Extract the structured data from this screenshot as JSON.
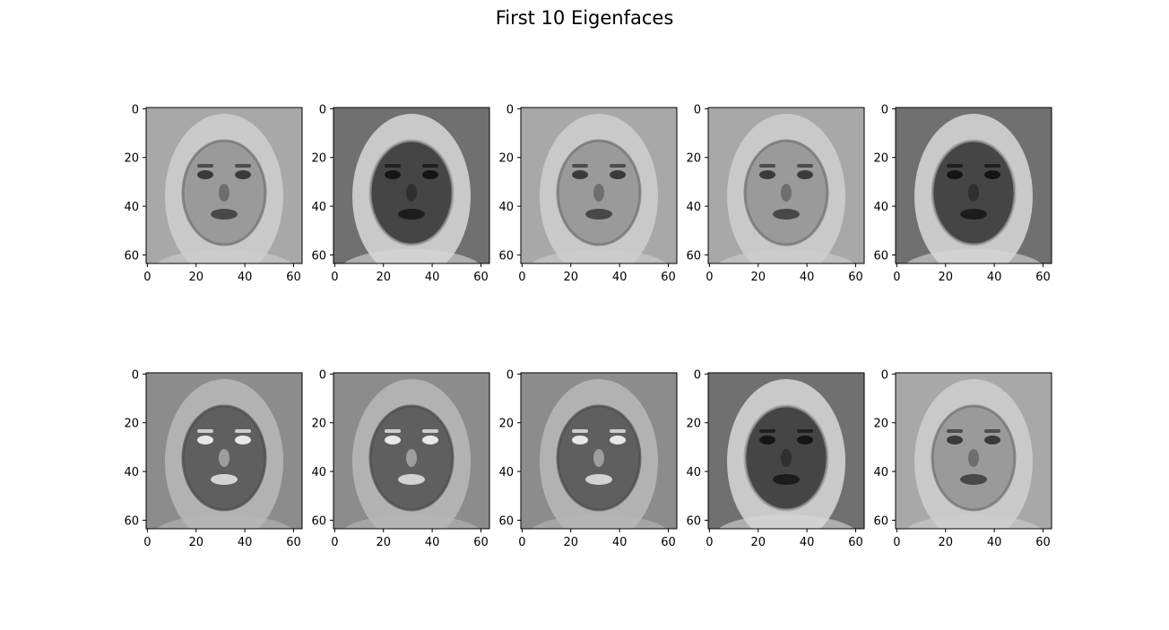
{
  "title": "First 10 Eigenfaces",
  "chart_data": {
    "type": "heatmap",
    "title": "First 10 Eigenfaces",
    "grid": false,
    "colormap": "gray",
    "layout": {
      "rows": 2,
      "cols": 5
    },
    "panels": [
      {
        "name": "",
        "tone": "light",
        "xticks": [
          0,
          20,
          40,
          60
        ],
        "yticks": [
          0,
          20,
          40,
          60
        ],
        "xlim": [
          0,
          63
        ],
        "ylim": [
          63,
          0
        ]
      },
      {
        "name": "",
        "tone": "dark",
        "xticks": [
          0,
          20,
          40,
          60
        ],
        "yticks": [
          0,
          20,
          40,
          60
        ],
        "xlim": [
          0,
          63
        ],
        "ylim": [
          63,
          0
        ]
      },
      {
        "name": "",
        "tone": "light",
        "xticks": [
          0,
          20,
          40,
          60
        ],
        "yticks": [
          0,
          20,
          40,
          60
        ],
        "xlim": [
          0,
          63
        ],
        "ylim": [
          63,
          0
        ]
      },
      {
        "name": "",
        "tone": "light",
        "xticks": [
          0,
          20,
          40,
          60
        ],
        "yticks": [
          0,
          20,
          40,
          60
        ],
        "xlim": [
          0,
          63
        ],
        "ylim": [
          63,
          0
        ]
      },
      {
        "name": "",
        "tone": "dark",
        "xticks": [
          0,
          20,
          40,
          60
        ],
        "yticks": [
          0,
          20,
          40,
          60
        ],
        "xlim": [
          0,
          63
        ],
        "ylim": [
          63,
          0
        ]
      },
      {
        "name": "",
        "tone": "mid",
        "xticks": [
          0,
          20,
          40,
          60
        ],
        "yticks": [
          0,
          20,
          40,
          60
        ],
        "xlim": [
          0,
          63
        ],
        "ylim": [
          63,
          0
        ]
      },
      {
        "name": "",
        "tone": "mid",
        "xticks": [
          0,
          20,
          40,
          60
        ],
        "yticks": [
          0,
          20,
          40,
          60
        ],
        "xlim": [
          0,
          63
        ],
        "ylim": [
          63,
          0
        ]
      },
      {
        "name": "",
        "tone": "mid",
        "xticks": [
          0,
          20,
          40,
          60
        ],
        "yticks": [
          0,
          20,
          40,
          60
        ],
        "xlim": [
          0,
          63
        ],
        "ylim": [
          63,
          0
        ]
      },
      {
        "name": "",
        "tone": "dark",
        "xticks": [
          0,
          20,
          40,
          60
        ],
        "yticks": [
          0,
          20,
          40,
          60
        ],
        "xlim": [
          0,
          63
        ],
        "ylim": [
          63,
          0
        ]
      },
      {
        "name": "",
        "tone": "light",
        "xticks": [
          0,
          20,
          40,
          60
        ],
        "yticks": [
          0,
          20,
          40,
          60
        ],
        "xlim": [
          0,
          63
        ],
        "ylim": [
          63,
          0
        ]
      }
    ]
  }
}
